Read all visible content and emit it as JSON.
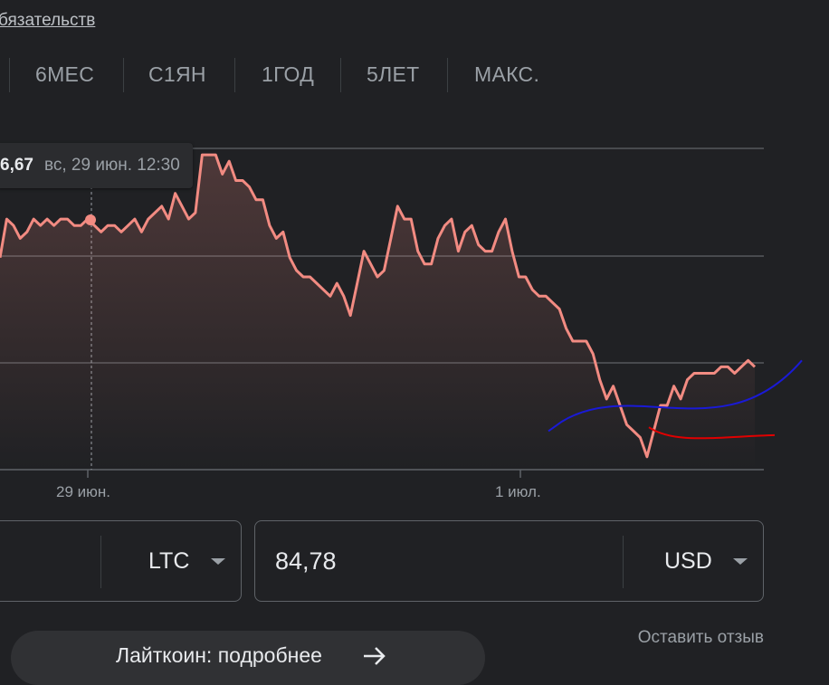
{
  "header": {
    "disclaimer_link": "бязательств"
  },
  "tabs": [
    {
      "label": "6МЕС"
    },
    {
      "label": "С1ЯН"
    },
    {
      "label": "1ГОД"
    },
    {
      "label": "5ЛЕТ"
    },
    {
      "label": "МАКС."
    }
  ],
  "tooltip": {
    "price": "6,67",
    "time": "вс, 29 июн. 12:30"
  },
  "chart_data": {
    "type": "line",
    "x_tick_labels": [
      "29 июн.",
      "1 июл."
    ],
    "series": [
      {
        "values": [
          66.3,
          66.9,
          66.8,
          66.6,
          66.7,
          66.9,
          66.8,
          66.9,
          66.8,
          66.9,
          66.9,
          66.8,
          66.8,
          66.9,
          66.8,
          66.7,
          66.8,
          66.8,
          66.7,
          66.8,
          66.9,
          66.7,
          66.9,
          67.0,
          67.1,
          66.9,
          67.3,
          67.1,
          66.9,
          67.0,
          67.9,
          67.9,
          67.9,
          67.6,
          67.8,
          67.5,
          67.5,
          67.4,
          67.2,
          67.2,
          66.8,
          66.6,
          66.7,
          66.3,
          66.1,
          66.0,
          66.0,
          65.9,
          65.8,
          65.7,
          65.9,
          65.7,
          65.4,
          65.9,
          66.4,
          66.2,
          66.0,
          66.1,
          66.6,
          67.1,
          66.9,
          66.9,
          66.4,
          66.2,
          66.2,
          66.6,
          66.8,
          66.9,
          66.4,
          66.7,
          66.8,
          66.5,
          66.4,
          66.4,
          66.7,
          66.9,
          66.4,
          66.0,
          66.0,
          65.8,
          65.7,
          65.7,
          65.6,
          65.5,
          65.2,
          65.0,
          65.0,
          65.0,
          64.8,
          64.4,
          64.1,
          64.3,
          64.0,
          63.7,
          63.6,
          63.5,
          63.2,
          63.6,
          64.0,
          64.0,
          64.3,
          64.1,
          64.4,
          64.5,
          64.5,
          64.5,
          64.5,
          64.6,
          64.6,
          64.5,
          64.6,
          64.7,
          64.6
        ]
      },
      {
        "values": [
          63.6,
          64.7
        ]
      },
      {
        "values": [
          63.8,
          64.1
        ]
      }
    ]
  },
  "converter": {
    "from_currency": "LTC",
    "to_value": "84,78",
    "to_currency": "USD"
  },
  "feedback_link": "Оставить отзыв",
  "more_button": {
    "label": "Лайткоин: подробнее"
  },
  "colors": {
    "price_line": "#f28b82",
    "trend_blue": "#1a1ad6",
    "trend_red": "#e00000"
  }
}
